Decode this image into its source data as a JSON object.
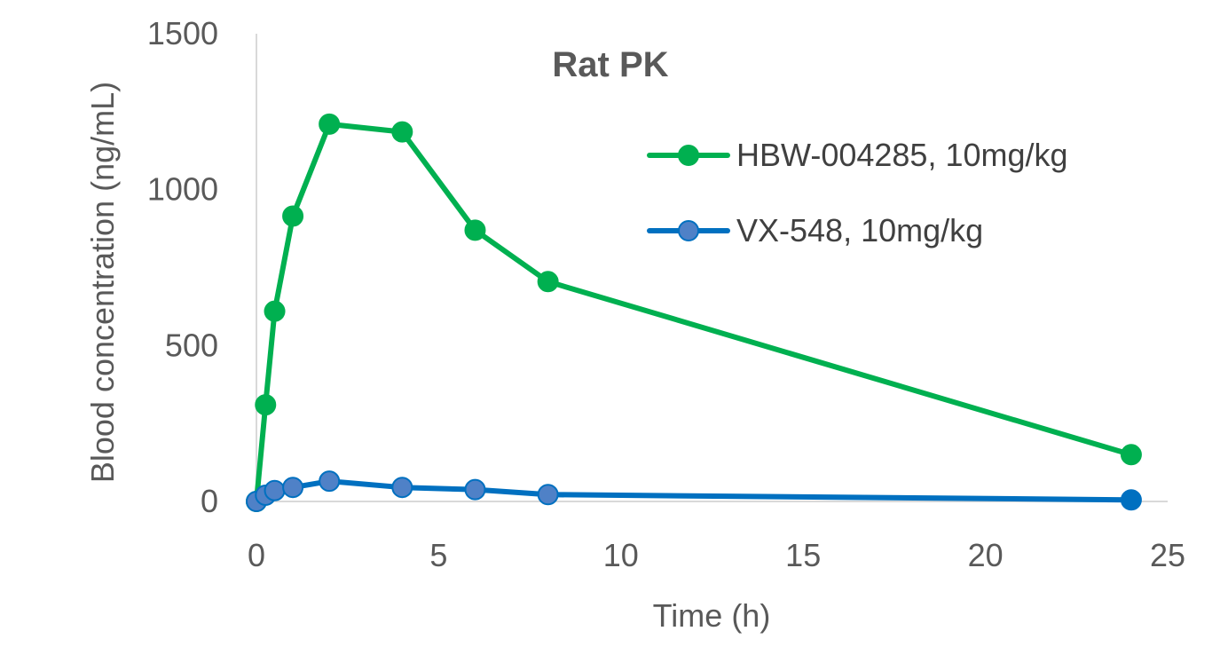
{
  "chart_data": {
    "type": "line",
    "title": "Rat PK",
    "xlabel": "Time (h)",
    "ylabel": "Blood concentration (ng/mL)",
    "xlim": [
      0,
      25
    ],
    "ylim": [
      0,
      1500
    ],
    "x_ticks": [
      "0",
      "5",
      "10",
      "15",
      "20",
      "25"
    ],
    "y_ticks": [
      "0",
      "500",
      "1000",
      "1500"
    ],
    "grid": false,
    "legend_position": "top-right",
    "series": [
      {
        "name": "HBW-004285, 10mg/kg",
        "color": "#00B050",
        "points": [
          {
            "x": 0,
            "y": 0
          },
          {
            "x": 0.25,
            "y": 310
          },
          {
            "x": 0.5,
            "y": 610
          },
          {
            "x": 1,
            "y": 915
          },
          {
            "x": 2,
            "y": 1210
          },
          {
            "x": 4,
            "y": 1185
          },
          {
            "x": 6,
            "y": 870
          },
          {
            "x": 8,
            "y": 705
          },
          {
            "x": 24,
            "y": 150
          }
        ]
      },
      {
        "name": "VX-548, 10mg/kg",
        "color": "#0070C0",
        "marker_fill": "#4F81C7",
        "points": [
          {
            "x": 0,
            "y": 0
          },
          {
            "x": 0.25,
            "y": 20
          },
          {
            "x": 0.5,
            "y": 35
          },
          {
            "x": 1,
            "y": 45
          },
          {
            "x": 2,
            "y": 65
          },
          {
            "x": 4,
            "y": 45
          },
          {
            "x": 6,
            "y": 38
          },
          {
            "x": 8,
            "y": 22
          },
          {
            "x": 24,
            "y": 5
          }
        ]
      }
    ]
  }
}
